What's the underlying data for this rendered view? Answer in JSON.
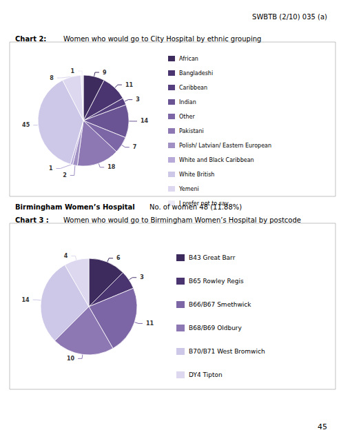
{
  "chart_data": [
    {
      "type": "pie",
      "title": "Chart 2:",
      "subtitle": "Women who would go to City Hospital by ethnic grouping",
      "categories": [
        "African",
        "Bangladeshi",
        "Caribbean",
        "Indian",
        "Other",
        "Pakistani",
        "Polish/ Latvian/ Eastern European",
        "White and Black Caribbean",
        "White British",
        "Yemeni",
        "I prefer not to say"
      ],
      "values": [
        9,
        11,
        3,
        14,
        7,
        18,
        2,
        1,
        45,
        8,
        1
      ],
      "colors": [
        "#3D2B5E",
        "#4A3570",
        "#553F7E",
        "#6B5494",
        "#7D66A6",
        "#8E78B4",
        "#A090C4",
        "#B8AAD8",
        "#CEC8E8",
        "#DDD8EF",
        "#EDEAF6"
      ],
      "data_labels": true,
      "legend": "right",
      "annotations": [
        "SWBTB (2/10) 035 (a)"
      ]
    },
    {
      "type": "pie",
      "title": "Chart 3 :",
      "subtitle": "Women who would go to Birmingham Women’s Hospital by postcode",
      "categories": [
        "B43 Great Barr",
        "B65 Rowley Regis",
        "B66/B67 Smethwick",
        "B68/B69 Oldbury",
        "B70/B71 West Bromwich",
        "DY4 Tipton"
      ],
      "values": [
        6,
        3,
        11,
        10,
        14,
        4
      ],
      "colors": [
        "#3D2B5E",
        "#4A3570",
        "#7D66A6",
        "#8E78B4",
        "#CEC8E8",
        "#DDD8EF"
      ],
      "data_labels": true,
      "legend": "right",
      "annotations": [
        "Birmingham Women’s Hospital",
        "No. of women 48 (11.88%)",
        "45"
      ]
    }
  ]
}
